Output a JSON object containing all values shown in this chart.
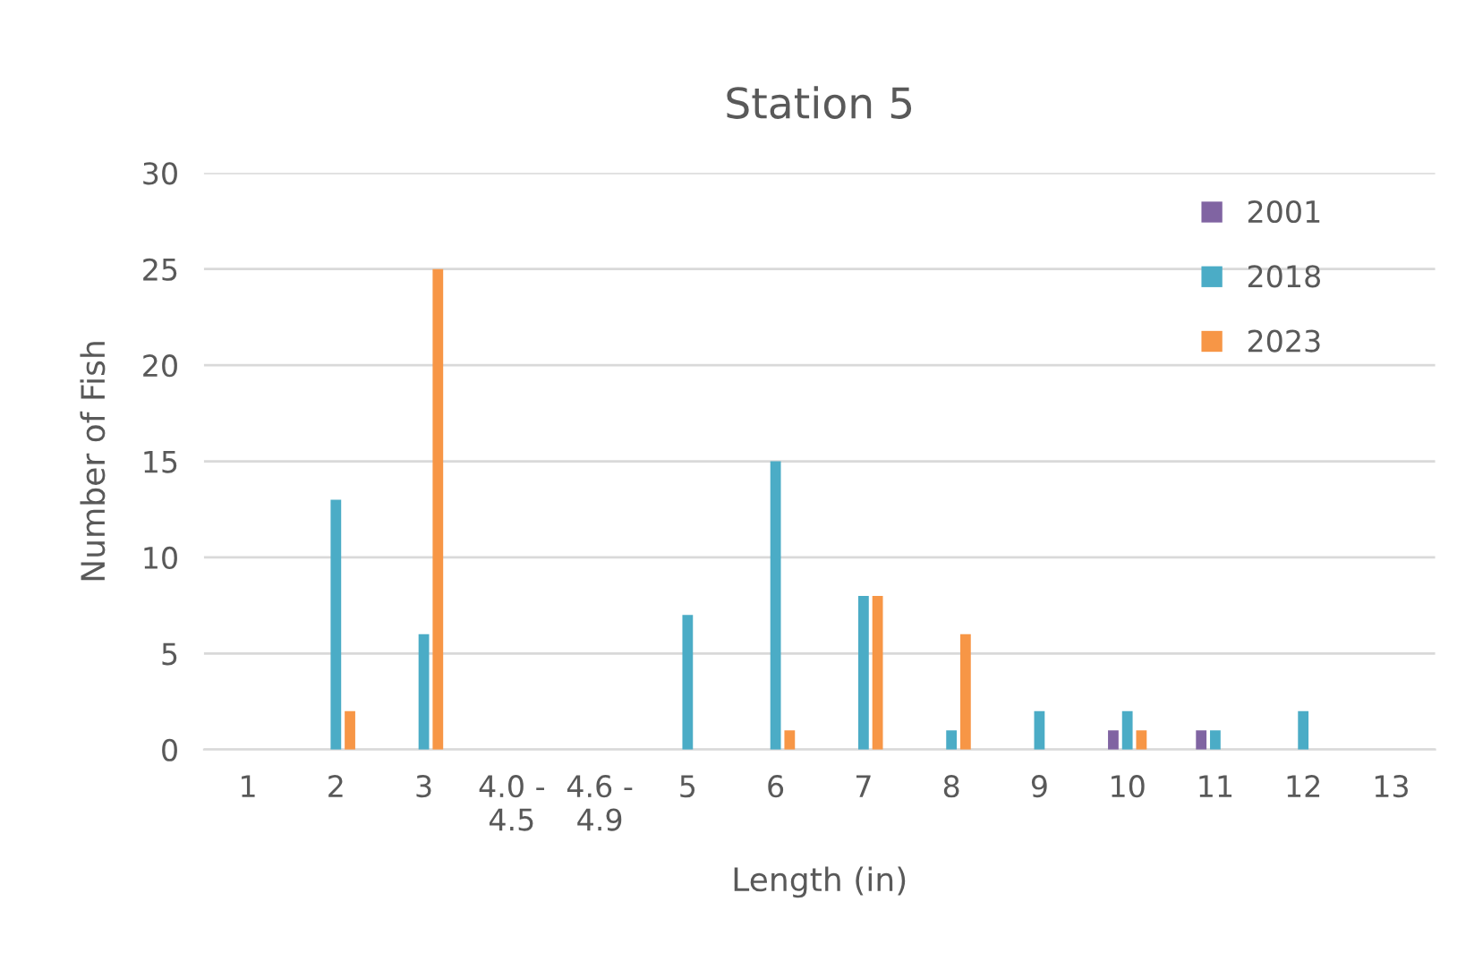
{
  "chart_data": {
    "type": "bar",
    "title": "Station 5",
    "xlabel": "Length (in)",
    "ylabel": "Number of Fish",
    "categories": [
      "1",
      "2",
      "3",
      "4.0 -\n4.5",
      "4.6 -\n4.9",
      "5",
      "6",
      "7",
      "8",
      "9",
      "10",
      "11",
      "12",
      "13"
    ],
    "series": [
      {
        "name": "2001",
        "color": "#8064a2",
        "values": [
          null,
          null,
          null,
          null,
          null,
          null,
          null,
          null,
          null,
          null,
          1,
          1,
          null,
          null
        ]
      },
      {
        "name": "2018",
        "color": "#4bacc6",
        "values": [
          null,
          13,
          6,
          null,
          null,
          7,
          15,
          8,
          1,
          2,
          2,
          1,
          2,
          null
        ]
      },
      {
        "name": "2023",
        "color": "#f79646",
        "values": [
          null,
          2,
          25,
          null,
          null,
          null,
          1,
          8,
          6,
          null,
          1,
          null,
          null,
          null
        ]
      }
    ],
    "ylim": [
      0,
      30
    ],
    "yticks": [
      0,
      5,
      10,
      15,
      20,
      25,
      30
    ],
    "grid": "y",
    "legend": "top right"
  }
}
